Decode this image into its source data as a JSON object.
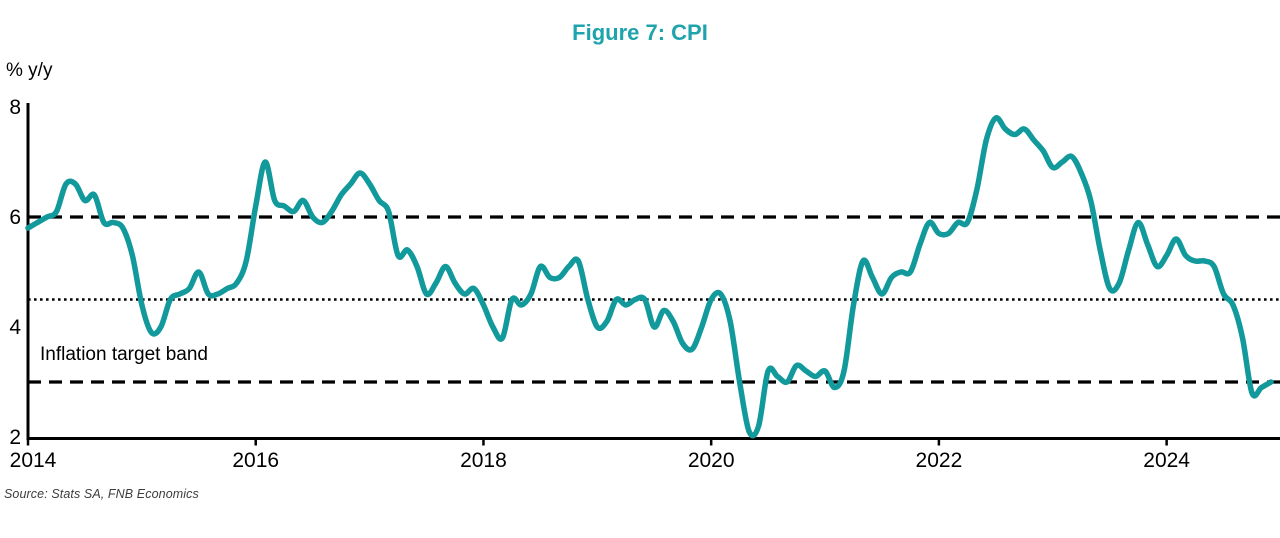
{
  "header": {
    "title": "Figure 7: CPI"
  },
  "annotation": {
    "inflation_band_label": "Inflation target band"
  },
  "footer": {
    "source": "Source: Stats SA, FNB Economics"
  },
  "colors": {
    "line": "#12999b",
    "title": "#1fa3ac",
    "axis": "#000000",
    "reference": "#000000",
    "source_text": "#3d3d3d"
  },
  "chart_data": {
    "type": "line",
    "title": "Figure 7: CPI",
    "ylabel": "% y/y",
    "xlabel": "",
    "ylim": [
      2,
      8
    ],
    "yticks": [
      2,
      4,
      6,
      8
    ],
    "xticks": [
      2014,
      2016,
      2018,
      2020,
      2022,
      2024
    ],
    "grid": false,
    "legend": "none",
    "frequency": "monthly",
    "reference_lines": [
      {
        "name": "target-band-upper",
        "value": 6,
        "style": "dashed"
      },
      {
        "name": "target-band-midpoint",
        "value": 4.5,
        "style": "dotted"
      },
      {
        "name": "target-band-lower",
        "value": 3,
        "style": "dashed"
      }
    ],
    "series": [
      {
        "name": "CPI (% y/y)",
        "start": "2014-01",
        "years": [
          {
            "year": 2014,
            "values": [
              5.8,
              5.9,
              6.0,
              6.1,
              6.6,
              6.6,
              6.3,
              6.4,
              5.9,
              5.9,
              5.8,
              5.3
            ]
          },
          {
            "year": 2015,
            "values": [
              4.4,
              3.9,
              4.0,
              4.5,
              4.6,
              4.7,
              5.0,
              4.6,
              4.6,
              4.7,
              4.8,
              5.2
            ]
          },
          {
            "year": 2016,
            "values": [
              6.2,
              7.0,
              6.3,
              6.2,
              6.1,
              6.3,
              6.0,
              5.9,
              6.1,
              6.4,
              6.6,
              6.8
            ]
          },
          {
            "year": 2017,
            "values": [
              6.6,
              6.3,
              6.1,
              5.3,
              5.4,
              5.1,
              4.6,
              4.8,
              5.1,
              4.8,
              4.6,
              4.7
            ]
          },
          {
            "year": 2018,
            "values": [
              4.4,
              4.0,
              3.8,
              4.5,
              4.4,
              4.6,
              5.1,
              4.9,
              4.9,
              5.1,
              5.2,
              4.5
            ]
          },
          {
            "year": 2019,
            "values": [
              4.0,
              4.1,
              4.5,
              4.4,
              4.5,
              4.5,
              4.0,
              4.3,
              4.1,
              3.7,
              3.6,
              4.0
            ]
          },
          {
            "year": 2020,
            "values": [
              4.5,
              4.6,
              4.1,
              3.0,
              2.1,
              2.2,
              3.2,
              3.1,
              3.0,
              3.3,
              3.2,
              3.1
            ]
          },
          {
            "year": 2021,
            "values": [
              3.2,
              2.9,
              3.2,
              4.4,
              5.2,
              4.9,
              4.6,
              4.9,
              5.0,
              5.0,
              5.5,
              5.9
            ]
          },
          {
            "year": 2022,
            "values": [
              5.7,
              5.7,
              5.9,
              5.9,
              6.5,
              7.4,
              7.8,
              7.6,
              7.5,
              7.6,
              7.4,
              7.2
            ]
          },
          {
            "year": 2023,
            "values": [
              6.9,
              7.0,
              7.1,
              6.8,
              6.3,
              5.4,
              4.7,
              4.8,
              5.4,
              5.9,
              5.5,
              5.1
            ]
          },
          {
            "year": 2024,
            "values": [
              5.3,
              5.6,
              5.3,
              5.2,
              5.2,
              5.1,
              4.6,
              4.4,
              3.8,
              2.8,
              2.9,
              3.0
            ]
          }
        ]
      }
    ]
  }
}
